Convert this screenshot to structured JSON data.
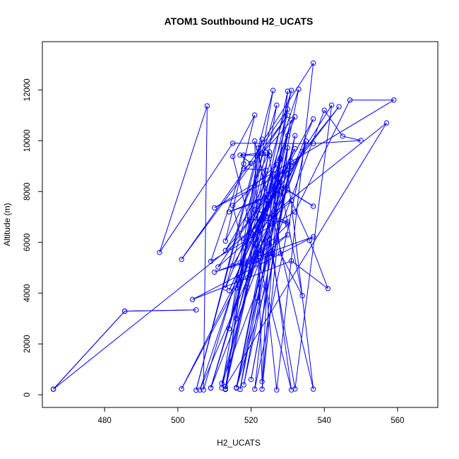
{
  "chart_data": {
    "type": "line",
    "title": "ATOM1 Southbound H2_UCATS",
    "xlabel": "H2_UCATS",
    "ylabel": "Altitude (m)",
    "xlim": [
      463,
      571
    ],
    "ylim": [
      -500,
      13900
    ],
    "xticks": [
      480,
      500,
      520,
      540,
      560
    ],
    "yticks": [
      0,
      2000,
      4000,
      6000,
      8000,
      10000,
      12000
    ],
    "series": [
      {
        "color": "#0000ff",
        "points": [
          [
            466,
            220
          ],
          [
            485.5,
            3290
          ],
          [
            505,
            3340
          ],
          [
            485.5,
            3290
          ],
          [
            466,
            220
          ],
          [
            557,
            10700
          ],
          [
            513,
            320
          ],
          [
            530,
            11950
          ],
          [
            521,
            220
          ],
          [
            535,
            9990
          ],
          [
            509,
            260
          ],
          [
            531,
            10820
          ],
          [
            512,
            270
          ],
          [
            526,
            11980
          ],
          [
            505,
            180
          ],
          [
            523,
            10060
          ],
          [
            513,
            210
          ],
          [
            531,
            11980
          ],
          [
            507,
            190
          ],
          [
            508,
            11370
          ],
          [
            495,
            5600
          ],
          [
            515,
            9900
          ],
          [
            537,
            9890
          ],
          [
            550,
            10010
          ],
          [
            545,
            10180
          ],
          [
            540,
            11200
          ],
          [
            512,
            450
          ],
          [
            530,
            10200
          ],
          [
            516,
            280
          ],
          [
            528,
            9300
          ],
          [
            523,
            220
          ],
          [
            530,
            9720
          ],
          [
            518,
            390
          ],
          [
            531,
            9180
          ],
          [
            520,
            600
          ],
          [
            532,
            10200
          ],
          [
            516,
            260
          ],
          [
            524,
            4260
          ],
          [
            527,
            190
          ],
          [
            537,
            13060
          ],
          [
            522,
            9710
          ],
          [
            531,
            190
          ],
          [
            515,
            9380
          ],
          [
            521,
            11010
          ],
          [
            513,
            6050
          ],
          [
            525,
            9560
          ],
          [
            516,
            4200
          ],
          [
            529,
            8800
          ],
          [
            514,
            4100
          ],
          [
            528,
            8380
          ],
          [
            515,
            5080
          ],
          [
            530,
            9000
          ],
          [
            517,
            5200
          ],
          [
            532,
            9690
          ],
          [
            518,
            6160
          ],
          [
            523,
            5700
          ],
          [
            519,
            6910
          ],
          [
            530,
            6800
          ],
          [
            521,
            7280
          ],
          [
            530,
            6700
          ],
          [
            522,
            5550
          ],
          [
            530,
            6300
          ],
          [
            521,
            5170
          ],
          [
            526,
            5540
          ],
          [
            510,
            4830
          ],
          [
            537,
            6220
          ],
          [
            504,
            3750
          ],
          [
            531,
            5270
          ],
          [
            541,
            4180
          ],
          [
            536,
            6070
          ],
          [
            531,
            7640
          ],
          [
            511,
            5030
          ],
          [
            528,
            8660
          ],
          [
            510,
            7360
          ],
          [
            559,
            11600
          ],
          [
            547,
            11600
          ],
          [
            532,
            7200
          ],
          [
            509,
            5250
          ],
          [
            518,
            9090
          ],
          [
            518,
            9430
          ],
          [
            525,
            9410
          ],
          [
            528,
            5560
          ],
          [
            534,
            3900
          ],
          [
            528,
            8220
          ],
          [
            537,
            7420
          ],
          [
            530,
            8060
          ],
          [
            501,
            230
          ],
          [
            534,
            9570
          ],
          [
            506,
            190
          ],
          [
            533,
            12030
          ],
          [
            517,
            210
          ],
          [
            530,
            11240
          ],
          [
            501,
            5330
          ],
          [
            530,
            11000
          ],
          [
            523,
            9500
          ],
          [
            532,
            10940
          ],
          [
            513,
            4200
          ],
          [
            527,
            11400
          ],
          [
            519,
            4600
          ],
          [
            537,
            10860
          ],
          [
            520,
            6360
          ],
          [
            542,
            11400
          ],
          [
            532,
            230
          ],
          [
            525,
            6100
          ],
          [
            523,
            520
          ],
          [
            521,
            9990
          ],
          [
            537,
            220
          ],
          [
            530,
            8690
          ],
          [
            544,
            11340
          ],
          [
            531,
            8990
          ],
          [
            513,
            5680
          ],
          [
            527,
            9060
          ],
          [
            515,
            7450
          ],
          [
            519,
            5100
          ],
          [
            509,
            270
          ],
          [
            526,
            8690
          ],
          [
            513,
            230
          ],
          [
            522,
            9490
          ],
          [
            514,
            2600
          ],
          [
            524,
            9540
          ],
          [
            517,
            9430
          ],
          [
            520,
            9110
          ],
          [
            518,
            8900
          ],
          [
            524,
            8840
          ],
          [
            522,
            3700
          ],
          [
            528,
            9260
          ],
          [
            516,
            3000
          ],
          [
            526,
            8590
          ],
          [
            519,
            4230
          ],
          [
            528,
            8000
          ],
          [
            514,
            7200
          ],
          [
            522,
            7600
          ]
        ]
      }
    ]
  }
}
